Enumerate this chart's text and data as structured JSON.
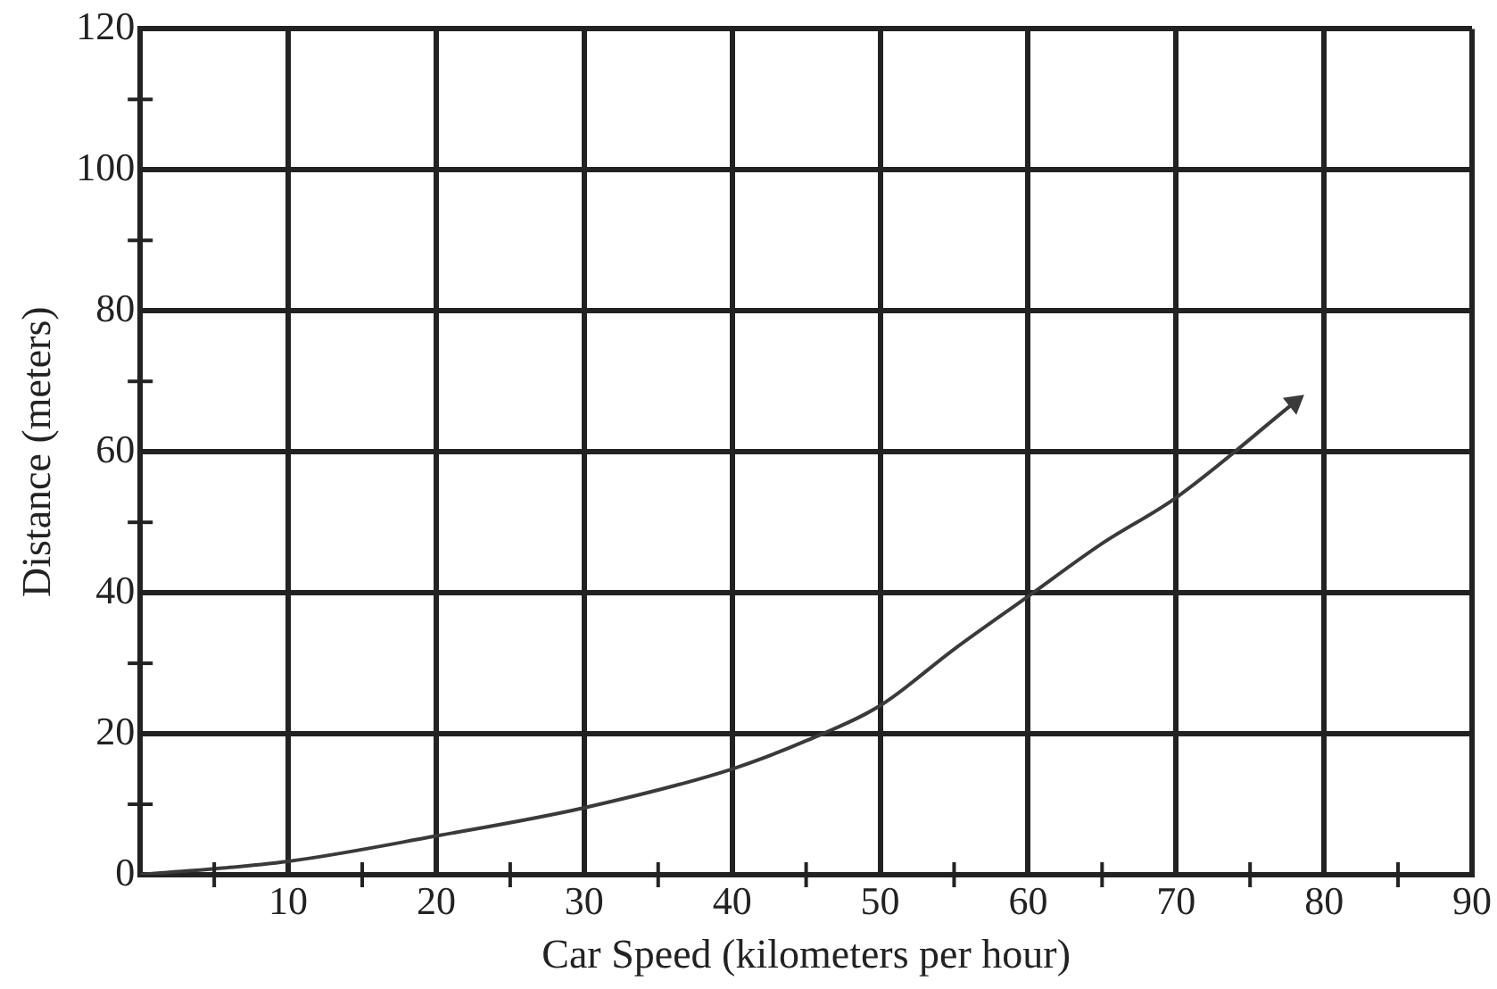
{
  "chart_data": {
    "type": "line",
    "xlabel": "Car Speed (kilometers per hour)",
    "ylabel": "Distance (meters)",
    "x": [
      0,
      10,
      20,
      30,
      40,
      45,
      50,
      55,
      60,
      65,
      70,
      78
    ],
    "series": [
      {
        "color": "#3a3a3a",
        "values": [
          0,
          1.9,
          5.5,
          9.5,
          15,
          19,
          24,
          32,
          39.5,
          47,
          53.5,
          67
        ]
      }
    ],
    "xlim": [
      0,
      90
    ],
    "ylim": [
      0,
      120
    ],
    "xticks": [
      {
        "value": 5,
        "label": null
      },
      10,
      {
        "value": 15,
        "label": null
      },
      20,
      {
        "value": 25,
        "label": null
      },
      30,
      {
        "value": 35,
        "label": null
      },
      40,
      {
        "value": 45,
        "label": null
      },
      50,
      {
        "value": 55,
        "label": null
      },
      60,
      {
        "value": 65,
        "label": null
      },
      70,
      {
        "value": 75,
        "label": null
      },
      80,
      {
        "value": 85,
        "label": null
      },
      90
    ],
    "yticks": [
      0,
      {
        "value": 10,
        "label": null
      },
      20,
      {
        "value": 30,
        "label": null
      },
      40,
      {
        "value": 50,
        "label": null
      },
      60,
      {
        "value": 70,
        "label": null
      },
      80,
      {
        "value": 90,
        "label": null
      },
      100,
      {
        "value": 110,
        "label": null
      },
      120
    ],
    "grid": true,
    "marker": "none",
    "line_style": "solid",
    "legend": false
  }
}
